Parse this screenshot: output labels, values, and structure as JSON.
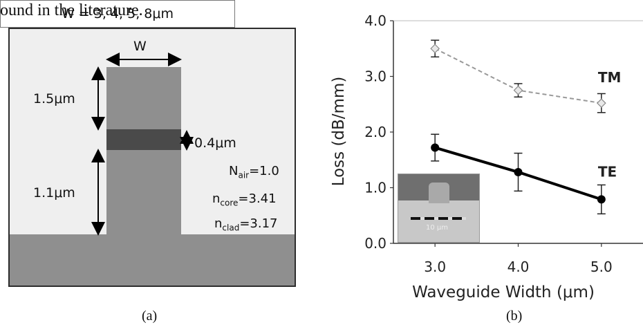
{
  "top_text": "ound in the literature.",
  "diagram": {
    "w_label": "W",
    "upper_height": "1.5μm",
    "lower_height": "1.1μm",
    "core_thickness": "0.4μm",
    "params": [
      {
        "sym": "N",
        "sub": "air",
        "val": "=1.0"
      },
      {
        "sym": "n",
        "sub": "core",
        "val": "=3.41"
      },
      {
        "sym": "n",
        "sub": "clad",
        "val": "=3.17"
      }
    ],
    "widths": "W = 3, 4, 5, 8μm",
    "colors": {
      "ridge": "#8f8f8f",
      "core": "#4a4a4a",
      "background": "#efefef"
    }
  },
  "captions": {
    "a": "(a)",
    "b": "(b)"
  },
  "chart_data": {
    "type": "line",
    "xlabel": "Waveguide Width (μm)",
    "ylabel": "Loss (dB/mm)",
    "x": [
      3.0,
      4.0,
      5.0
    ],
    "x_ticks": [
      "3.0",
      "4.0",
      "5.0"
    ],
    "y_ticks": [
      "0.0",
      "1.0",
      "2.0",
      "3.0",
      "4.0"
    ],
    "xlim": [
      2.5,
      5.5
    ],
    "ylim": [
      0,
      4.0
    ],
    "grid": false,
    "series": [
      {
        "name": "TM",
        "values": [
          3.5,
          2.75,
          2.52
        ],
        "err": [
          0.15,
          0.12,
          0.17
        ],
        "color": "#999999",
        "dashed": true
      },
      {
        "name": "TE",
        "values": [
          1.72,
          1.28,
          0.79
        ],
        "err": [
          0.24,
          0.34,
          0.26
        ],
        "color": "#000000",
        "dashed": false
      }
    ],
    "inset_label": "10 μm"
  }
}
